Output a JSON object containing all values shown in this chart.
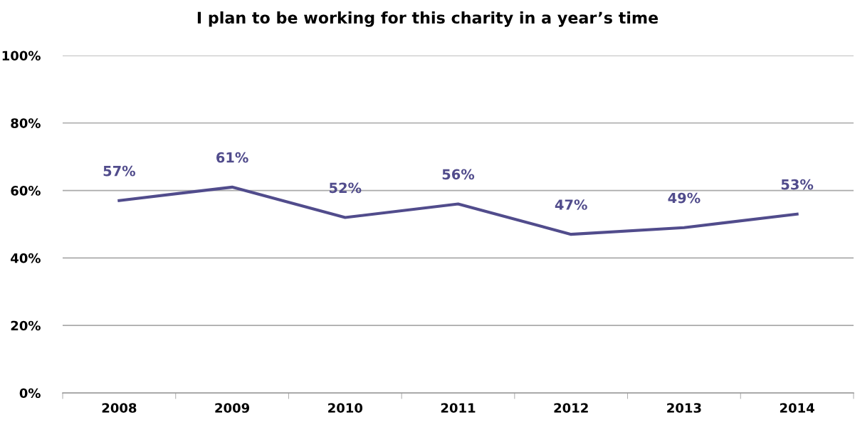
{
  "chart_data": {
    "type": "line",
    "title": "I plan to be working for this charity in a year’s time",
    "categories": [
      "2008",
      "2009",
      "2010",
      "2011",
      "2012",
      "2013",
      "2014"
    ],
    "series": [
      {
        "color": "#514c8c",
        "values": [
          57,
          61,
          52,
          56,
          47,
          49,
          53
        ],
        "value_labels": [
          "57%",
          "61%",
          "52%",
          "56%",
          "47%",
          "49%",
          "53%"
        ]
      }
    ],
    "ylim": [
      0,
      100
    ],
    "yticks": [
      {
        "value": 0,
        "label": "0%"
      },
      {
        "value": 20,
        "label": "20%"
      },
      {
        "value": 40,
        "label": "40%"
      },
      {
        "value": 60,
        "label": "60%"
      },
      {
        "value": 80,
        "label": "80%"
      },
      {
        "value": 100,
        "label": "100%"
      }
    ],
    "grid": "y",
    "marker": "none",
    "line_style": "solid"
  }
}
